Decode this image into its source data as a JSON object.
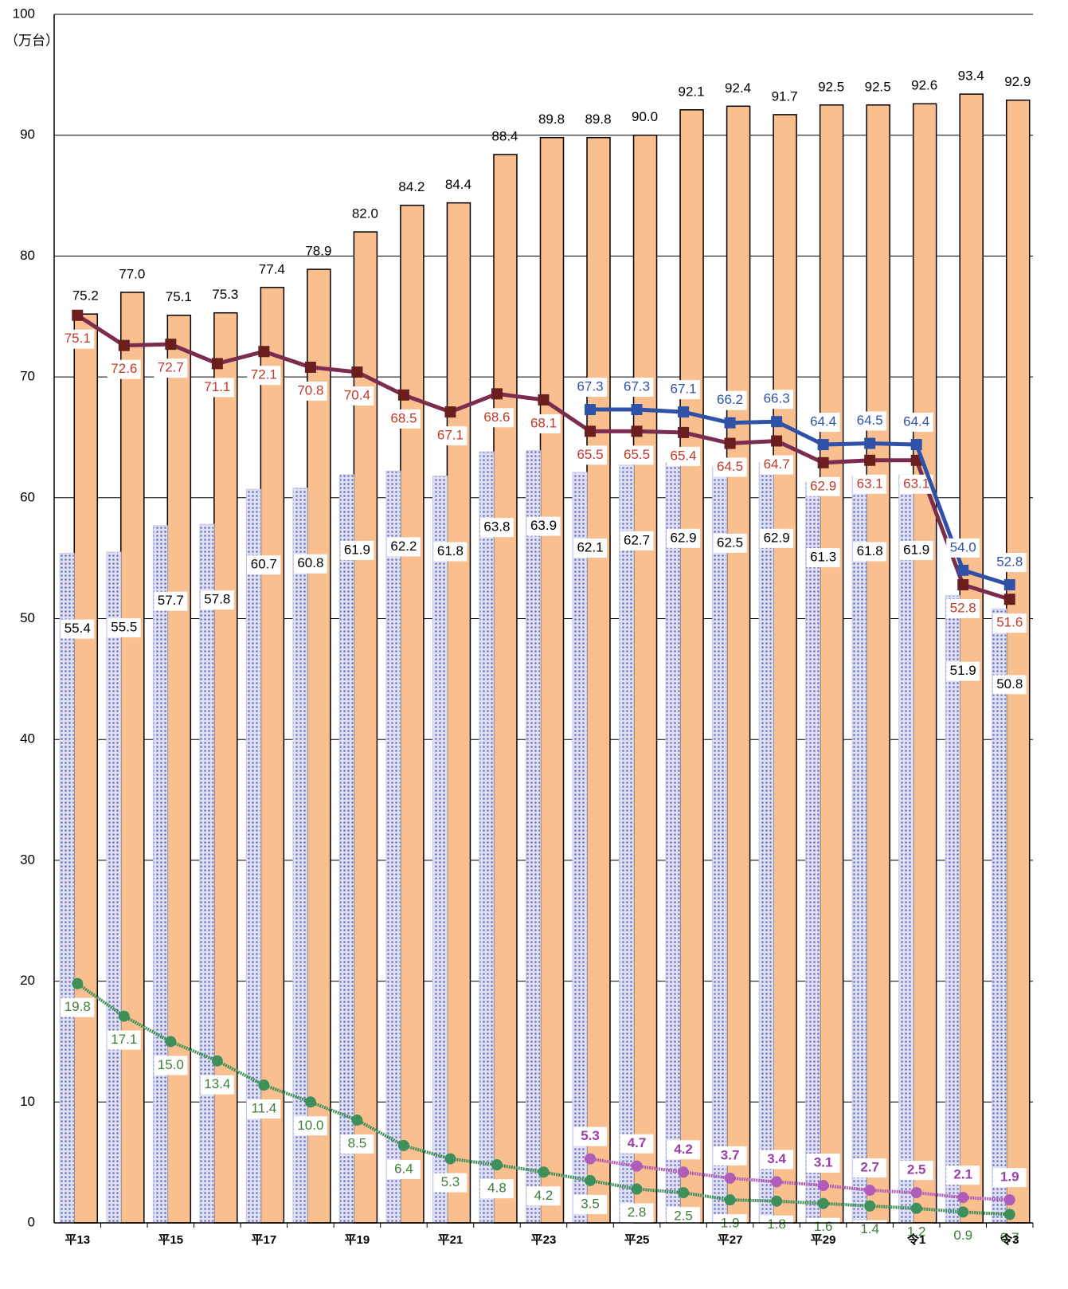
{
  "chart_data": {
    "type": "bar",
    "y_axis_label": "（万台）",
    "categories": [
      "平13",
      null,
      "平15",
      null,
      "平17",
      null,
      "平19",
      null,
      "平21",
      null,
      "平23",
      null,
      "平25",
      null,
      "平27",
      null,
      "平29",
      null,
      "令1",
      null,
      "令3"
    ],
    "ylim": [
      0,
      100
    ],
    "yticks": [
      0,
      10,
      20,
      30,
      40,
      50,
      60,
      70,
      80,
      90,
      100
    ],
    "grid": true,
    "series": [
      {
        "kind": "bar",
        "color": "#f9bf8f",
        "values": [
          75.2,
          77.0,
          75.1,
          75.3,
          77.4,
          78.9,
          82.0,
          84.2,
          84.4,
          88.4,
          89.8,
          89.8,
          90.0,
          92.1,
          92.4,
          91.7,
          92.5,
          92.5,
          92.6,
          93.4,
          92.9
        ],
        "value_labels": [
          "75.2",
          "77.0",
          "75.1",
          "75.3",
          "77.4",
          "78.9",
          "82.0",
          "84.2",
          "84.4",
          "88.4",
          "89.8",
          "89.8",
          "90.0",
          "92.1",
          "92.4",
          "91.7",
          "92.5",
          "92.5",
          "92.6",
          "93.4",
          "92.9"
        ]
      },
      {
        "kind": "bar",
        "color": "#c5c8e6",
        "values": [
          55.4,
          55.5,
          57.7,
          57.8,
          60.7,
          60.8,
          61.9,
          62.2,
          61.8,
          63.8,
          63.9,
          62.1,
          62.7,
          62.9,
          62.5,
          62.9,
          61.3,
          61.8,
          61.9,
          51.9,
          50.8
        ],
        "value_labels": [
          "55.4",
          "55.5",
          "57.7",
          "57.8",
          "60.7",
          "60.8",
          "61.9",
          "62.2",
          "61.8",
          "63.8",
          "63.9",
          "62.1",
          "62.7",
          "62.9",
          "62.5",
          "62.9",
          "61.3",
          "61.8",
          "61.9",
          "51.9",
          "50.8"
        ]
      },
      {
        "kind": "line",
        "color": "#7b2d4f",
        "label_color": "#c0392b",
        "values": [
          75.1,
          72.6,
          72.7,
          71.1,
          72.1,
          70.8,
          70.4,
          68.5,
          67.1,
          68.6,
          68.1,
          65.5,
          65.5,
          65.4,
          64.5,
          64.7,
          62.9,
          63.1,
          63.1,
          52.8,
          51.6
        ],
        "value_labels": [
          "75.1",
          "72.6",
          "72.7",
          "71.1",
          "72.1",
          "70.8",
          "70.4",
          "68.5",
          "67.1",
          "68.6",
          "68.1",
          "65.5",
          "65.5",
          "65.4",
          "64.5",
          "64.7",
          "62.9",
          "63.1",
          "63.1",
          "52.8",
          "51.6"
        ]
      },
      {
        "kind": "line",
        "color": "#2f52a8",
        "label_color": "#2f52a8",
        "values": [
          null,
          null,
          null,
          null,
          null,
          null,
          null,
          null,
          null,
          null,
          null,
          67.3,
          67.3,
          67.1,
          66.2,
          66.3,
          64.4,
          64.5,
          64.4,
          54.0,
          52.8
        ],
        "value_labels": [
          null,
          null,
          null,
          null,
          null,
          null,
          null,
          null,
          null,
          null,
          null,
          "67.3",
          "67.3",
          "67.1",
          "66.2",
          "66.3",
          "64.4",
          "64.5",
          "64.4",
          "54.0",
          "52.8"
        ]
      },
      {
        "kind": "line",
        "color": "#3f8f5a",
        "label_color": "#3f7f3a",
        "values": [
          19.8,
          17.1,
          15.0,
          13.4,
          11.4,
          10.0,
          8.5,
          6.4,
          5.3,
          4.8,
          4.2,
          3.5,
          2.8,
          2.5,
          1.9,
          1.8,
          1.6,
          1.4,
          1.2,
          0.9,
          0.7
        ],
        "value_labels": [
          "19.8",
          "17.1",
          "15.0",
          "13.4",
          "11.4",
          "10.0",
          "8.5",
          "6.4",
          "5.3",
          "4.8",
          "4.2",
          "3.5",
          "2.8",
          "2.5",
          "1.9",
          "1.8",
          "1.6",
          "1.4",
          "1.2",
          "0.9",
          "0.7"
        ]
      },
      {
        "kind": "line",
        "color": "#b05cb8",
        "label_color": "#9b3fa8",
        "values": [
          null,
          null,
          null,
          null,
          null,
          null,
          null,
          null,
          null,
          null,
          null,
          5.3,
          4.7,
          4.2,
          3.7,
          3.4,
          3.1,
          2.7,
          2.5,
          2.1,
          1.9
        ],
        "value_labels": [
          null,
          null,
          null,
          null,
          null,
          null,
          null,
          null,
          null,
          null,
          null,
          "5.3",
          "4.7",
          "4.2",
          "3.7",
          "3.4",
          "3.1",
          "2.7",
          "2.5",
          "2.1",
          "1.9"
        ]
      }
    ]
  }
}
